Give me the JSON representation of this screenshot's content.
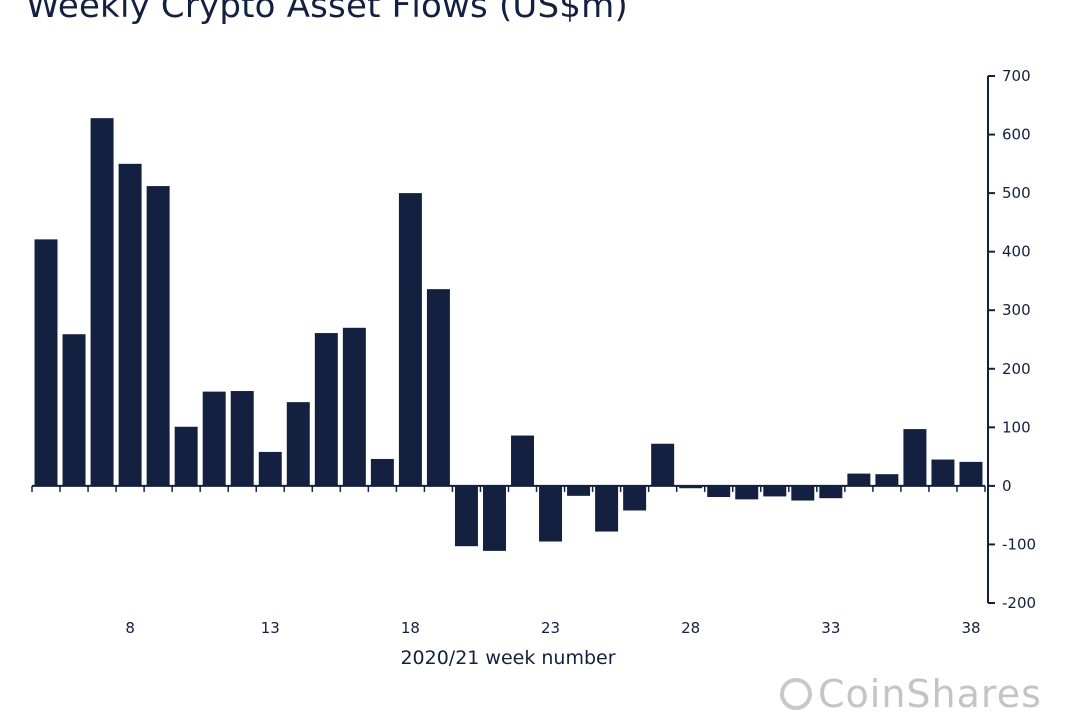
{
  "title": "Weekly Crypto Asset Flows (US$m)",
  "brand": "CoinShares",
  "chart_data": {
    "type": "bar",
    "title": "Weekly Crypto Asset Flows (US$m)",
    "xlabel": "2020/21 week number",
    "ylabel": "",
    "ylim": [
      -200,
      700
    ],
    "yticks": [
      700,
      600,
      500,
      400,
      300,
      200,
      100,
      0,
      -100,
      -200
    ],
    "xtick_labels": [
      "8",
      "13",
      "18",
      "23",
      "28",
      "33",
      "38"
    ],
    "y_axis_position": "right",
    "grid": false,
    "bar_color": "#132040",
    "categories": [
      "5",
      "6",
      "7",
      "8",
      "9",
      "10",
      "11",
      "12",
      "13",
      "14",
      "15",
      "16",
      "17",
      "18",
      "19",
      "20",
      "21",
      "22",
      "23",
      "24",
      "25",
      "26",
      "27",
      "28",
      "29",
      "30",
      "31",
      "32",
      "33",
      "34",
      "35",
      "36",
      "37",
      "38"
    ],
    "values": [
      421,
      259,
      628,
      550,
      512,
      101,
      161,
      162,
      58,
      143,
      261,
      270,
      46,
      500,
      336,
      -103,
      -111,
      86,
      -95,
      -17,
      -78,
      -42,
      72,
      -4,
      -19,
      -23,
      -18,
      -25,
      -21,
      21,
      20,
      97,
      45,
      41
    ]
  }
}
